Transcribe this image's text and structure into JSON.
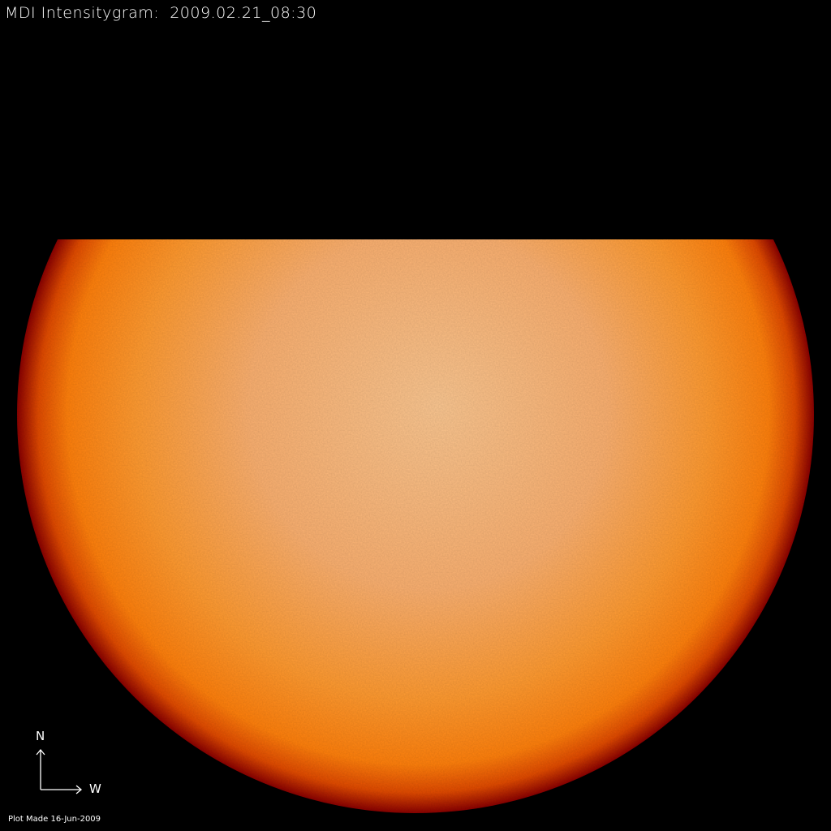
{
  "header": {
    "title": "MDI Intensitygram:  2009.02.21_08:30"
  },
  "compass": {
    "north_label": "N",
    "west_label": "W"
  },
  "footer": {
    "plot_made": "Plot Made 16-Jun-2009"
  },
  "colors": {
    "limb": "#8a0000",
    "mid": "#ff8a10",
    "center": "#fbc690",
    "background": "#000000"
  }
}
